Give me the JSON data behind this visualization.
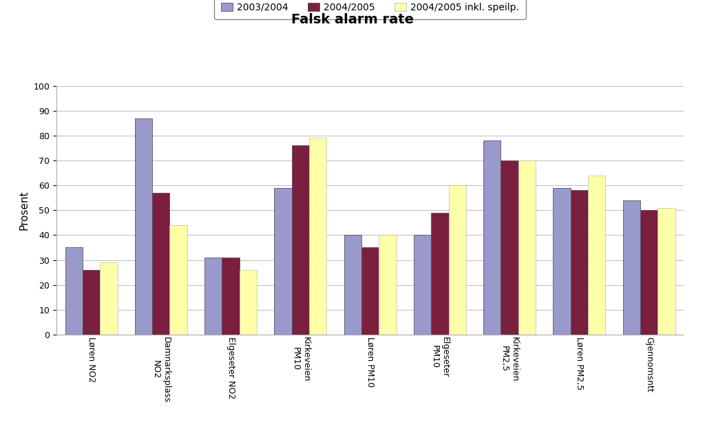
{
  "title": "Falsk alarm rate",
  "ylabel": "Prosent",
  "categories": [
    "Løren NO2",
    "Damnarksplass\nNO2",
    "Elgeseter NO2",
    "Kirkeveien\nPM10",
    "Løren PM10",
    "Elgeseter\nPM10",
    "Kirkeveien\nPM2,5",
    "Løren PM2,5",
    "Gjennomsntt"
  ],
  "series": {
    "2003/2004": [
      35,
      87,
      31,
      59,
      40,
      40,
      78,
      59,
      54
    ],
    "2004/2005": [
      26,
      57,
      31,
      76,
      35,
      49,
      70,
      58,
      50
    ],
    "2004/2005 inkl. speilp.": [
      29,
      44,
      26,
      79,
      40,
      60,
      70,
      64,
      51
    ]
  },
  "colors": {
    "2003/2004": "#9999cc",
    "2004/2005": "#7b1f3e",
    "2004/2005 inkl. speilp.": "#ffffaa"
  },
  "ylim": [
    0,
    100
  ],
  "yticks": [
    0,
    10,
    20,
    30,
    40,
    50,
    60,
    70,
    80,
    90,
    100
  ],
  "legend_labels": [
    "2003/2004",
    "2004/2005",
    "2004/2005 inkl. speilp."
  ],
  "bar_width": 0.25,
  "title_fontsize": 14,
  "axis_fontsize": 11,
  "tick_fontsize": 9,
  "legend_fontsize": 10,
  "background_color": "#ffffff",
  "grid_color": "#bbbbbb"
}
